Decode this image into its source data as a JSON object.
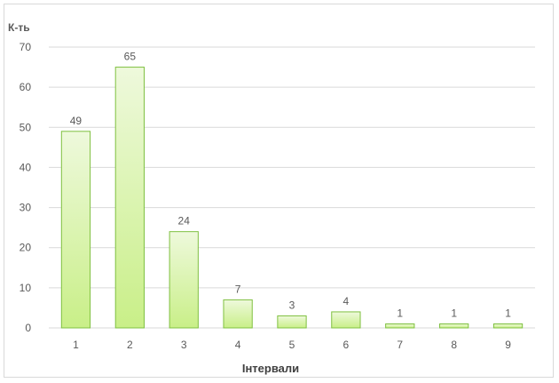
{
  "chart_data": {
    "type": "bar",
    "categories": [
      "1",
      "2",
      "3",
      "4",
      "5",
      "6",
      "7",
      "8",
      "9"
    ],
    "values": [
      49,
      65,
      24,
      7,
      3,
      4,
      1,
      1,
      1
    ],
    "xlabel": "Інтервали",
    "ylabel": "К-ть",
    "ylim": [
      0,
      70
    ],
    "yticks": [
      "0",
      "10",
      "20",
      "30",
      "40",
      "50",
      "60",
      "70"
    ],
    "grid": true,
    "legend": "none",
    "colors": {
      "bar_fill_top": "#eef9dc",
      "bar_fill_bottom": "#c9ef88",
      "bar_stroke": "#7fc040",
      "grid": "#d9d9d9",
      "text": "#595959"
    }
  }
}
